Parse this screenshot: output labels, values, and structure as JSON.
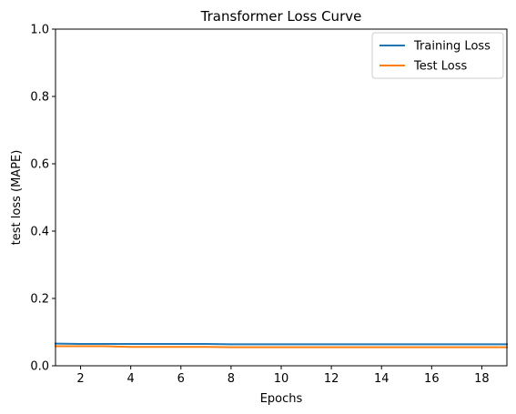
{
  "chart_data": {
    "type": "line",
    "title": "Transformer Loss Curve",
    "xlabel": "Epochs",
    "ylabel": "test loss (MAPE)",
    "xlim": [
      1,
      19
    ],
    "ylim": [
      0,
      1.0
    ],
    "xticks": [
      2,
      4,
      6,
      8,
      10,
      12,
      14,
      16,
      18
    ],
    "yticks": [
      0.0,
      0.2,
      0.4,
      0.6,
      0.8,
      1.0
    ],
    "ytick_labels": [
      "0.0",
      "0.2",
      "0.4",
      "0.6",
      "0.8",
      "1.0"
    ],
    "grid": false,
    "legend_position": "top-right",
    "x": [
      1,
      2,
      3,
      4,
      5,
      6,
      7,
      8,
      9,
      10,
      11,
      12,
      13,
      14,
      15,
      16,
      17,
      18,
      19
    ],
    "series": [
      {
        "name": "Training Loss",
        "color": "#1f77b4",
        "values": [
          0.066,
          0.065,
          0.065,
          0.065,
          0.065,
          0.065,
          0.065,
          0.064,
          0.064,
          0.064,
          0.064,
          0.064,
          0.064,
          0.064,
          0.064,
          0.064,
          0.064,
          0.064,
          0.064
        ]
      },
      {
        "name": "Test Loss",
        "color": "#ff7f0e",
        "values": [
          0.058,
          0.058,
          0.058,
          0.056,
          0.056,
          0.056,
          0.056,
          0.055,
          0.055,
          0.055,
          0.055,
          0.055,
          0.055,
          0.055,
          0.055,
          0.055,
          0.055,
          0.055,
          0.055
        ]
      }
    ]
  }
}
